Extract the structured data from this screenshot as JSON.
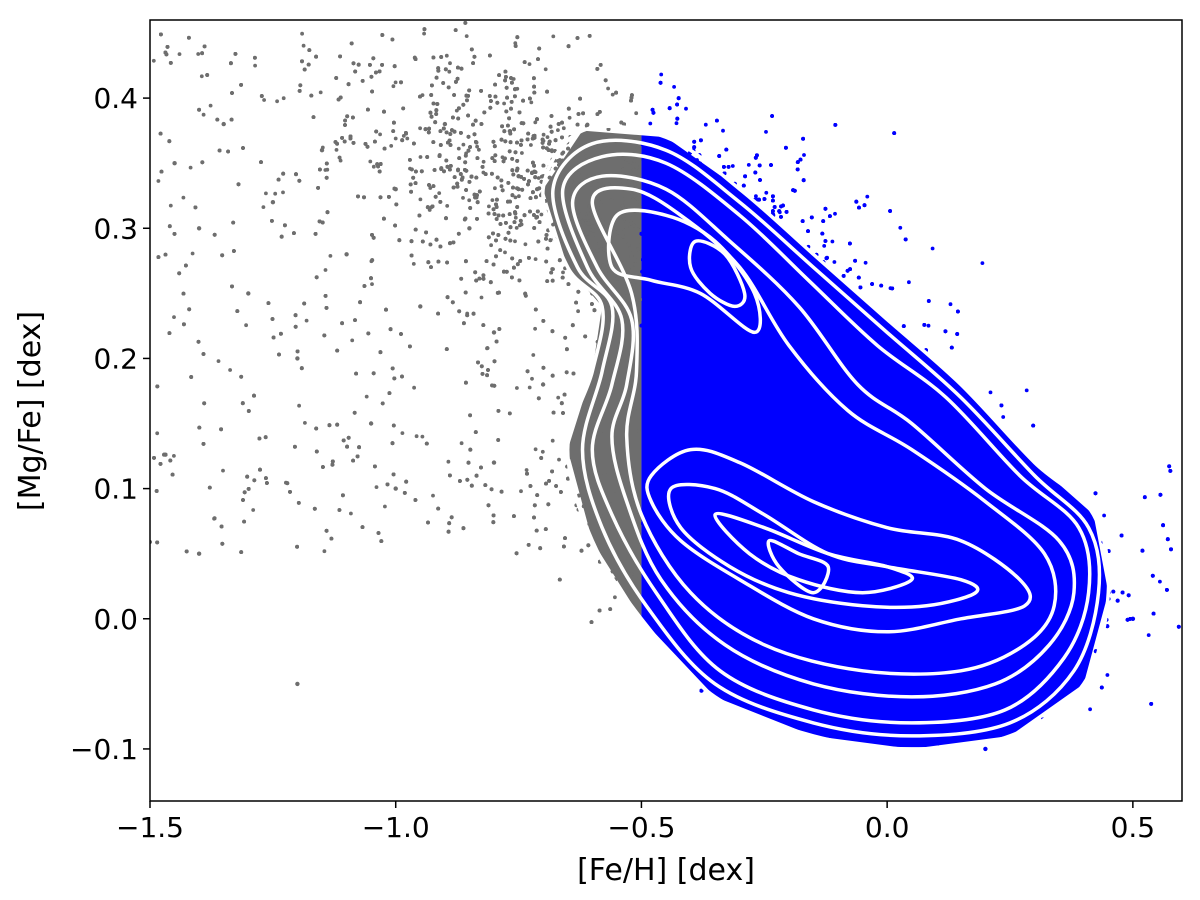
{
  "chart_data": {
    "type": "scatter",
    "title": "",
    "xlabel": "[Fe/H] [dex]",
    "ylabel": "[Mg/Fe] [dex]",
    "xlim": [
      -1.5,
      0.6
    ],
    "ylim": [
      -0.14,
      0.46
    ],
    "x_ticks": [
      {
        "value": -1.5,
        "label": "−1.5"
      },
      {
        "value": -1.0,
        "label": "−1.0"
      },
      {
        "value": -0.5,
        "label": "−0.5"
      },
      {
        "value": 0.0,
        "label": "0.0"
      },
      {
        "value": 0.5,
        "label": "0.5"
      }
    ],
    "y_ticks": [
      {
        "value": -0.1,
        "label": "−0.1"
      },
      {
        "value": 0.0,
        "label": "0.0"
      },
      {
        "value": 0.1,
        "label": "0.1"
      },
      {
        "value": 0.2,
        "label": "0.2"
      },
      {
        "value": 0.3,
        "label": "0.3"
      },
      {
        "value": 0.4,
        "label": "0.4"
      }
    ],
    "grid": false,
    "legend": "none",
    "split_feh": -0.5,
    "series": [
      {
        "color": "#6e6e6e",
        "feh_range": [
          -1.5,
          -0.5
        ],
        "sampled_points": [
          [
            -1.45,
            0.35
          ],
          [
            -1.4,
            0.3
          ],
          [
            -1.35,
            0.38
          ],
          [
            -1.3,
            0.25
          ],
          [
            -1.25,
            0.32
          ],
          [
            -1.2,
            0.2
          ],
          [
            -1.15,
            0.36
          ],
          [
            -1.1,
            0.28
          ],
          [
            -1.05,
            0.15
          ],
          [
            -1.0,
            0.33
          ],
          [
            -0.95,
            0.24
          ],
          [
            -0.9,
            0.38
          ],
          [
            -0.85,
            0.3
          ],
          [
            -0.8,
            0.22
          ],
          [
            -0.75,
            0.34
          ],
          [
            -0.7,
            0.18
          ],
          [
            -0.65,
            0.32
          ],
          [
            -0.6,
            0.1
          ],
          [
            -0.55,
            0.36
          ],
          [
            -0.52,
            0.05
          ],
          [
            -1.4,
            0.05
          ],
          [
            -1.2,
            -0.05
          ],
          [
            -1.0,
            0.1
          ],
          [
            -0.8,
            0.12
          ],
          [
            -0.6,
            0.25
          ]
        ]
      },
      {
        "color": "#0000ff",
        "feh_range": [
          -0.5,
          0.6
        ],
        "sampled_points": [
          [
            -0.45,
            0.36
          ],
          [
            -0.4,
            0.3
          ],
          [
            -0.35,
            0.27
          ],
          [
            -0.3,
            0.22
          ],
          [
            -0.25,
            0.18
          ],
          [
            -0.2,
            0.15
          ],
          [
            -0.15,
            0.05
          ],
          [
            -0.1,
            0.03
          ],
          [
            -0.05,
            0.0
          ],
          [
            0.0,
            -0.02
          ],
          [
            0.05,
            0.02
          ],
          [
            0.1,
            0.05
          ],
          [
            0.15,
            0.1
          ],
          [
            0.2,
            0.08
          ],
          [
            0.25,
            0.04
          ],
          [
            0.3,
            0.02
          ],
          [
            0.35,
            0.0
          ],
          [
            0.4,
            0.05
          ],
          [
            0.45,
            0.02
          ],
          [
            0.5,
            0.0
          ],
          [
            -0.4,
            0.1
          ],
          [
            -0.3,
            0.05
          ],
          [
            -0.2,
            -0.05
          ],
          [
            0.0,
            -0.08
          ],
          [
            0.2,
            -0.1
          ]
        ]
      }
    ],
    "contours": [
      {
        "level": 1,
        "points": [
          [
            -0.7,
            0.33
          ],
          [
            -0.62,
            0.375
          ],
          [
            -0.45,
            0.37
          ],
          [
            -0.3,
            0.33
          ],
          [
            -0.15,
            0.28
          ],
          [
            0.0,
            0.23
          ],
          [
            0.15,
            0.18
          ],
          [
            0.3,
            0.12
          ],
          [
            0.42,
            0.08
          ],
          [
            0.45,
            0.02
          ],
          [
            0.4,
            -0.05
          ],
          [
            0.25,
            -0.09
          ],
          [
            0.05,
            -0.1
          ],
          [
            -0.15,
            -0.09
          ],
          [
            -0.35,
            -0.06
          ],
          [
            -0.5,
            0.0
          ],
          [
            -0.6,
            0.06
          ],
          [
            -0.65,
            0.13
          ],
          [
            -0.6,
            0.19
          ],
          [
            -0.58,
            0.24
          ],
          [
            -0.65,
            0.27
          ]
        ]
      },
      {
        "level": 2,
        "points": [
          [
            -0.68,
            0.33
          ],
          [
            -0.6,
            0.365
          ],
          [
            -0.45,
            0.36
          ],
          [
            -0.3,
            0.32
          ],
          [
            -0.15,
            0.27
          ],
          [
            0.0,
            0.22
          ],
          [
            0.15,
            0.17
          ],
          [
            0.3,
            0.11
          ],
          [
            0.41,
            0.07
          ],
          [
            0.43,
            0.02
          ],
          [
            0.38,
            -0.04
          ],
          [
            0.25,
            -0.08
          ],
          [
            0.05,
            -0.09
          ],
          [
            -0.15,
            -0.08
          ],
          [
            -0.35,
            -0.05
          ],
          [
            -0.49,
            0.01
          ],
          [
            -0.58,
            0.07
          ],
          [
            -0.62,
            0.13
          ],
          [
            -0.58,
            0.19
          ],
          [
            -0.56,
            0.24
          ],
          [
            -0.63,
            0.27
          ]
        ]
      },
      {
        "level": 3,
        "points": [
          [
            -0.66,
            0.33
          ],
          [
            -0.58,
            0.355
          ],
          [
            -0.45,
            0.35
          ],
          [
            -0.3,
            0.31
          ],
          [
            -0.16,
            0.26
          ],
          [
            -0.02,
            0.21
          ],
          [
            0.12,
            0.17
          ],
          [
            0.27,
            0.11
          ],
          [
            0.39,
            0.07
          ],
          [
            0.41,
            0.02
          ],
          [
            0.36,
            -0.03
          ],
          [
            0.24,
            -0.07
          ],
          [
            0.05,
            -0.08
          ],
          [
            -0.15,
            -0.07
          ],
          [
            -0.34,
            -0.04
          ],
          [
            -0.47,
            0.02
          ],
          [
            -0.56,
            0.08
          ],
          [
            -0.6,
            0.13
          ],
          [
            -0.56,
            0.18
          ],
          [
            -0.54,
            0.23
          ],
          [
            -0.61,
            0.27
          ]
        ]
      },
      {
        "level": 4,
        "points": [
          [
            -0.64,
            0.32
          ],
          [
            -0.58,
            0.34
          ],
          [
            -0.45,
            0.33
          ],
          [
            -0.32,
            0.29
          ],
          [
            -0.18,
            0.24
          ],
          [
            -0.06,
            0.18
          ],
          [
            0.05,
            0.15
          ],
          [
            0.2,
            0.1
          ],
          [
            0.35,
            0.06
          ],
          [
            0.38,
            0.02
          ],
          [
            0.33,
            -0.02
          ],
          [
            0.22,
            -0.05
          ],
          [
            0.05,
            -0.06
          ],
          [
            -0.15,
            -0.05
          ],
          [
            -0.33,
            -0.02
          ],
          [
            -0.46,
            0.03
          ],
          [
            -0.53,
            0.09
          ],
          [
            -0.56,
            0.14
          ],
          [
            -0.53,
            0.18
          ],
          [
            -0.52,
            0.23
          ],
          [
            -0.59,
            0.27
          ]
        ]
      },
      {
        "level": 5,
        "points": [
          [
            -0.6,
            0.32
          ],
          [
            -0.52,
            0.33
          ],
          [
            -0.42,
            0.31
          ],
          [
            -0.3,
            0.27
          ],
          [
            -0.2,
            0.21
          ],
          [
            -0.08,
            0.16
          ],
          [
            0.05,
            0.13
          ],
          [
            0.2,
            0.09
          ],
          [
            0.32,
            0.05
          ],
          [
            0.34,
            0.01
          ],
          [
            0.28,
            -0.02
          ],
          [
            0.15,
            -0.04
          ],
          [
            -0.05,
            -0.04
          ],
          [
            -0.25,
            -0.02
          ],
          [
            -0.4,
            0.02
          ],
          [
            -0.5,
            0.08
          ],
          [
            -0.53,
            0.14
          ],
          [
            -0.51,
            0.19
          ],
          [
            -0.52,
            0.25
          ]
        ]
      },
      {
        "level": 6,
        "points": [
          [
            -0.55,
            0.31
          ],
          [
            -0.45,
            0.31
          ],
          [
            -0.35,
            0.29
          ],
          [
            -0.27,
            0.25
          ],
          [
            -0.27,
            0.22
          ],
          [
            -0.38,
            0.25
          ],
          [
            -0.48,
            0.26
          ],
          [
            -0.56,
            0.27
          ]
        ]
      },
      {
        "level": 6,
        "points": [
          [
            -0.48,
            0.11
          ],
          [
            -0.4,
            0.13
          ],
          [
            -0.3,
            0.12
          ],
          [
            -0.15,
            0.09
          ],
          [
            0.0,
            0.07
          ],
          [
            0.15,
            0.06
          ],
          [
            0.27,
            0.03
          ],
          [
            0.28,
            0.01
          ],
          [
            0.15,
            0.0
          ],
          [
            0.0,
            -0.01
          ],
          [
            -0.15,
            0.0
          ],
          [
            -0.3,
            0.03
          ],
          [
            -0.42,
            0.06
          ],
          [
            -0.48,
            0.09
          ]
        ]
      },
      {
        "level": 7,
        "points": [
          [
            -0.39,
            0.29
          ],
          [
            -0.33,
            0.28
          ],
          [
            -0.29,
            0.25
          ],
          [
            -0.31,
            0.24
          ],
          [
            -0.36,
            0.25
          ],
          [
            -0.4,
            0.27
          ]
        ]
      },
      {
        "level": 7,
        "points": [
          [
            -0.44,
            0.1
          ],
          [
            -0.35,
            0.1
          ],
          [
            -0.25,
            0.08
          ],
          [
            -0.12,
            0.05
          ],
          [
            0.0,
            0.04
          ],
          [
            0.15,
            0.03
          ],
          [
            0.18,
            0.02
          ],
          [
            0.08,
            0.01
          ],
          [
            -0.05,
            0.01
          ],
          [
            -0.2,
            0.02
          ],
          [
            -0.32,
            0.04
          ],
          [
            -0.42,
            0.07
          ]
        ]
      },
      {
        "level": 8,
        "points": [
          [
            -0.35,
            0.08
          ],
          [
            -0.25,
            0.07
          ],
          [
            -0.12,
            0.05
          ],
          [
            0.0,
            0.04
          ],
          [
            0.05,
            0.03
          ],
          [
            -0.05,
            0.02
          ],
          [
            -0.18,
            0.03
          ],
          [
            -0.28,
            0.05
          ]
        ]
      },
      {
        "level": 9,
        "points": [
          [
            -0.24,
            0.06
          ],
          [
            -0.18,
            0.05
          ],
          [
            -0.12,
            0.04
          ],
          [
            -0.15,
            0.02
          ],
          [
            -0.22,
            0.04
          ]
        ]
      }
    ]
  }
}
